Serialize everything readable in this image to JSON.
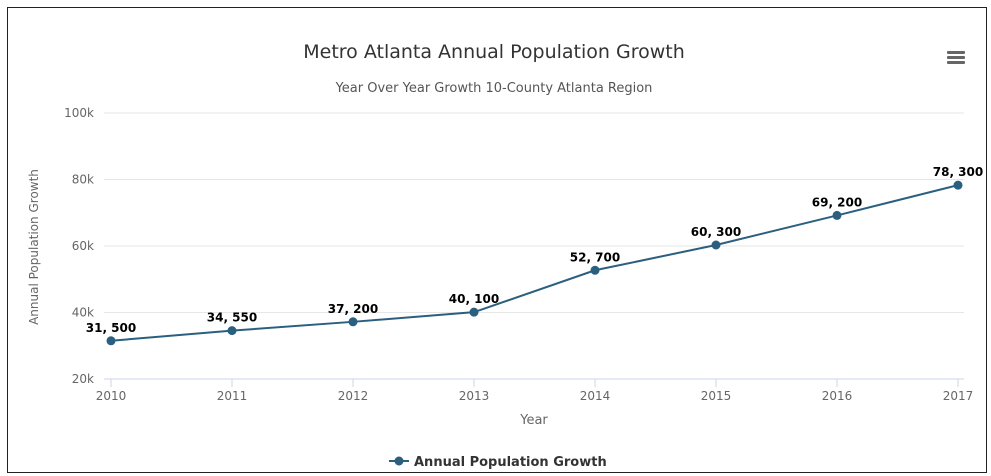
{
  "chart_data": {
    "type": "line",
    "title": "Metro Atlanta Annual Population Growth",
    "subtitle": "Year Over Year Growth 10-County Atlanta Region",
    "xlabel": "Year",
    "ylabel": "Annual Population Growth",
    "categories": [
      "2010",
      "2011",
      "2012",
      "2013",
      "2014",
      "2015",
      "2016",
      "2017"
    ],
    "series": [
      {
        "name": "Annual Population Growth",
        "values": [
          31500,
          34550,
          37200,
          40100,
          52700,
          60300,
          69200,
          78300
        ],
        "labels": [
          "31, 500",
          "34, 550",
          "37, 200",
          "40, 100",
          "52, 700",
          "60, 300",
          "69, 200",
          "78, 300"
        ],
        "color": "#2b5f7f"
      }
    ],
    "ylim": [
      20000,
      100000
    ],
    "yticks": [
      20000,
      40000,
      60000,
      80000,
      100000
    ],
    "ytick_labels": [
      "20k",
      "40k",
      "60k",
      "80k",
      "100k"
    ],
    "grid": true,
    "legend_position": "bottom-center"
  },
  "toolbar": {
    "menu_icon": "hamburger-menu-icon"
  }
}
